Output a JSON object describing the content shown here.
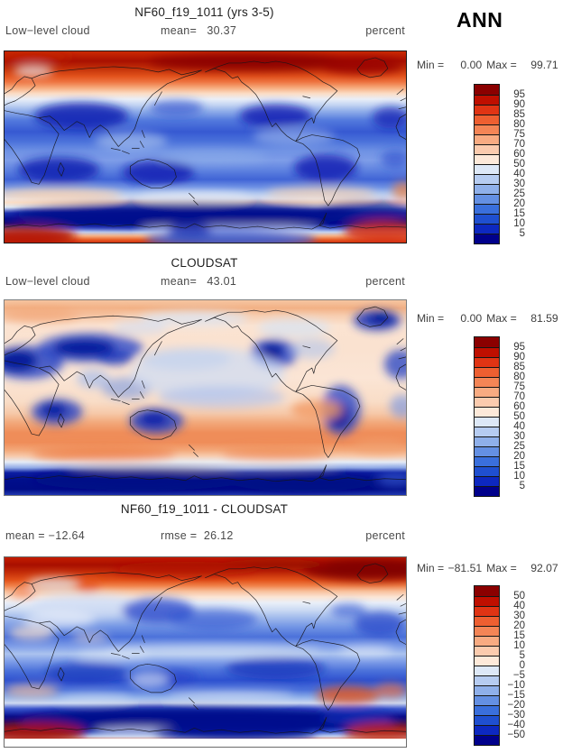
{
  "header": {
    "season_label": "ANN"
  },
  "panels": [
    {
      "id": "model",
      "title": "NF60_f19_1011 (yrs 3-5)",
      "left_text": "Low−level cloud",
      "mid_label": "mean=",
      "mid_value": "30.37",
      "units": "percent",
      "min_label": "Min =",
      "min_value": "0.00",
      "max_label": "Max =",
      "max_value": "99.71",
      "colorbar": {
        "labels": [
          "95",
          "90",
          "85",
          "80",
          "75",
          "70",
          "60",
          "50",
          "40",
          "30",
          "25",
          "20",
          "15",
          "10",
          "5"
        ],
        "colors": [
          "#8b0000",
          "#bf0f00",
          "#e03414",
          "#ee5f31",
          "#f48556",
          "#f8ab82",
          "#fbcbae",
          "#fde9d9",
          "#dde8f7",
          "#b6ccf1",
          "#8fb0ea",
          "#6490e3",
          "#3a6fdc",
          "#1f4fd0",
          "#0d28c0",
          "#00008b"
        ]
      }
    },
    {
      "id": "obs",
      "title": "CLOUDSAT",
      "left_text": "Low−level cloud",
      "mid_label": "mean=",
      "mid_value": "43.01",
      "units": "percent",
      "min_label": "Min =",
      "min_value": "0.00",
      "max_label": "Max =",
      "max_value": "81.59",
      "colorbar": {
        "labels": [
          "95",
          "90",
          "85",
          "80",
          "75",
          "70",
          "60",
          "50",
          "40",
          "30",
          "25",
          "20",
          "15",
          "10",
          "5"
        ],
        "colors": [
          "#8b0000",
          "#bf0f00",
          "#e03414",
          "#ee5f31",
          "#f48556",
          "#f8ab82",
          "#fbcbae",
          "#fde9d9",
          "#dde8f7",
          "#b6ccf1",
          "#8fb0ea",
          "#6490e3",
          "#3a6fdc",
          "#1f4fd0",
          "#0d28c0",
          "#00008b"
        ]
      }
    },
    {
      "id": "diff",
      "title": "NF60_f19_1011 - CLOUDSAT",
      "left_text": "mean = −12.64",
      "mid_label": "rmse =",
      "mid_value": "26.12",
      "units": "percent",
      "min_label": "Min =",
      "min_value": "−81.51",
      "max_label": "Max =",
      "max_value": "92.07",
      "colorbar": {
        "labels": [
          "50",
          "40",
          "30",
          "20",
          "15",
          "10",
          "5",
          "0",
          "−5",
          "−10",
          "−15",
          "−20",
          "−30",
          "−40",
          "−50"
        ],
        "colors": [
          "#8b0000",
          "#bf0f00",
          "#e03414",
          "#ee5f31",
          "#f48556",
          "#f8ab82",
          "#fbcbae",
          "#fde9d9",
          "#dde8f7",
          "#b6ccf1",
          "#8fb0ea",
          "#6490e3",
          "#3a6fdc",
          "#1f4fd0",
          "#0d28c0",
          "#00008b"
        ]
      }
    }
  ],
  "chart_data": [
    {
      "type": "heatmap",
      "title": "NF60_f19_1011 (yrs 3-5)",
      "variable": "Low-level cloud",
      "units": "percent",
      "season": "ANN",
      "mean": 30.37,
      "min": 0.0,
      "max": 99.71,
      "contour_levels": [
        5,
        10,
        15,
        20,
        25,
        30,
        40,
        50,
        60,
        70,
        75,
        80,
        85,
        90,
        95
      ],
      "palette": "blue-to-red diverging, 16 classes (dark blue = low %, dark red = high %)",
      "projection": "global lat-lon map, Pacific-centered, coastlines overlaid",
      "pattern_summary": "high cloud (red) over Arctic and 50-70S storm-track fringes; low cloud (blue/navy) over subtropical oceans, tropics and 55-70S band"
    },
    {
      "type": "heatmap",
      "title": "CLOUDSAT",
      "variable": "Low-level cloud",
      "units": "percent",
      "season": "ANN",
      "mean": 43.01,
      "min": 0.0,
      "max": 81.59,
      "contour_levels": [
        5,
        10,
        15,
        20,
        25,
        30,
        40,
        50,
        60,
        70,
        75,
        80,
        85,
        90,
        95
      ],
      "palette": "blue-to-red diverging, 16 classes",
      "projection": "global lat-lon map, Pacific-centered, coastlines overlaid",
      "pattern_summary": "moderate cloud (peach) over most oceans, 50-70% band near 50-60S; low cloud (navy) over continental interiors (Asia, Sahara, southern Africa, Australia, western North America, Andes) and Antarctica"
    },
    {
      "type": "heatmap",
      "title": "NF60_f19_1011 - CLOUDSAT",
      "variable": "Low-level cloud difference (model minus obs)",
      "units": "percent",
      "season": "ANN",
      "mean": -12.64,
      "rmse": 26.12,
      "min": -81.51,
      "max": 92.07,
      "contour_levels": [
        -50,
        -40,
        -30,
        -20,
        -15,
        -10,
        -5,
        0,
        5,
        10,
        15,
        20,
        30,
        40,
        50
      ],
      "palette": "blue-to-red diverging, 16 classes (blue = model too low, red = model too high)",
      "projection": "global lat-lon map, Pacific-centered, coastlines overlaid",
      "pattern_summary": "model overestimates (red) in Arctic and along Antarctic coast; underestimates (blue/navy) over most mid-latitude and tropical oceans and 55-70S band"
    }
  ]
}
